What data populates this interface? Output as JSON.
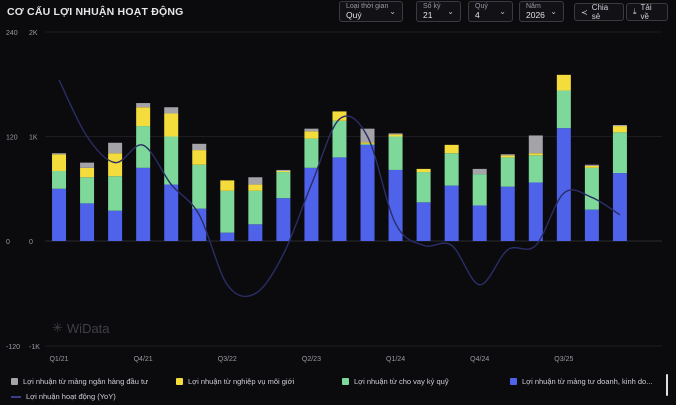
{
  "title": "CƠ CẤU LỢI NHUẬN HOẠT ĐỘNG",
  "controls": [
    {
      "label": "Loại thời gian",
      "value": "Quý"
    },
    {
      "label": "Số kỳ",
      "value": "21"
    },
    {
      "label": "Quý",
      "value": "4"
    },
    {
      "label": "Năm",
      "value": "2026"
    }
  ],
  "actions": {
    "share": "Chia sẻ",
    "download": "Tải về"
  },
  "watermark": "WiData",
  "colors": {
    "gray": "#a4a4a8",
    "yellow": "#f4dc3c",
    "green": "#7ed89a",
    "blue": "#4f62ea",
    "line": "#22233f"
  },
  "chart_data": {
    "type": "bar",
    "stacked": true,
    "categories": [
      "Q1/21",
      "Q2/21",
      "Q3/21",
      "Q4/21",
      "Q1/22",
      "Q2/22",
      "Q3/22",
      "Q4/22",
      "Q1/23",
      "Q2/23",
      "Q3/23",
      "Q4/23",
      "Q1/24",
      "Q2/24",
      "Q3/24",
      "Q4/24",
      "Q1/25",
      "Q2/25",
      "Q3/25",
      "Q4/25",
      "Q1/26",
      "Q2/26"
    ],
    "tick_labels": [
      "Q1/21",
      "Q4/21",
      "Q3/22",
      "Q2/23",
      "Q1/24",
      "Q4/24",
      "Q3/25"
    ],
    "y_left": {
      "ticks": [
        "240",
        "120",
        "0",
        "-120"
      ],
      "range": [
        -120,
        240
      ]
    },
    "y_right": {
      "ticks": [
        "2K",
        "1K",
        "0",
        "-1K"
      ],
      "range": [
        -1000,
        2000
      ]
    },
    "series": [
      {
        "name": "Lợi nhuận từ mảng tư doanh, kinh do...",
        "color": "#4f62ea",
        "values": [
          500,
          360,
          290,
          700,
          540,
          310,
          80,
          160,
          410,
          700,
          800,
          920,
          680,
          370,
          530,
          340,
          520,
          560,
          1080,
          300,
          650,
          0
        ]
      },
      {
        "name": "Lợi nhuận từ cho vay ký quỹ",
        "color": "#7ed89a",
        "values": [
          170,
          250,
          330,
          400,
          460,
          420,
          400,
          320,
          250,
          280,
          350,
          10,
          320,
          290,
          310,
          300,
          280,
          260,
          360,
          400,
          390,
          0
        ]
      },
      {
        "name": "Lợi nhuận từ nghiệp vụ môi giới",
        "color": "#f4dc3c",
        "values": [
          160,
          90,
          220,
          180,
          220,
          140,
          100,
          60,
          10,
          70,
          90,
          15,
          20,
          30,
          80,
          0,
          20,
          20,
          150,
          20,
          60,
          0
        ]
      },
      {
        "name": "Lợi nhuận từ mảng ngân hàng đầu tư",
        "color": "#a4a4a8",
        "values": [
          10,
          50,
          100,
          40,
          60,
          60,
          0,
          70,
          10,
          25,
          0,
          130,
          10,
          0,
          0,
          50,
          10,
          170,
          0,
          10,
          10,
          0
        ]
      }
    ],
    "line": {
      "name": "Lợi nhuận hoạt động (YoY)",
      "color": "#22233f",
      "values": [
        185,
        120,
        90,
        110,
        65,
        30,
        -50,
        -60,
        -15,
        65,
        140,
        120,
        20,
        -5,
        -5,
        -50,
        -10,
        -5,
        55,
        50,
        30,
        0
      ]
    }
  }
}
